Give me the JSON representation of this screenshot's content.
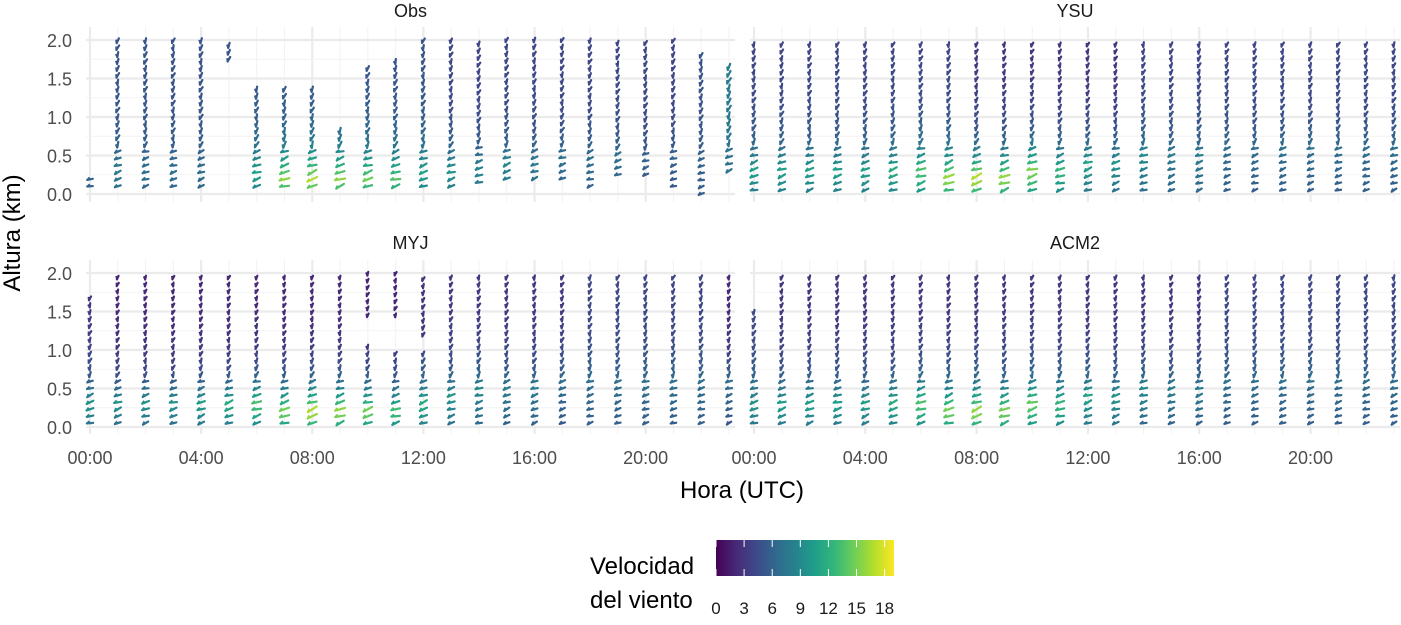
{
  "chart_data": {
    "type": "vector field (wind barbs) facet grid",
    "x_axis": {
      "label": "Hora (UTC)",
      "tick_labels": [
        "00:00",
        "04:00",
        "08:00",
        "12:00",
        "16:00",
        "20:00"
      ],
      "tick_hours": [
        0,
        4,
        8,
        12,
        16,
        20
      ],
      "range_hours": [
        0,
        23
      ]
    },
    "y_axis": {
      "label": "Altura (km)",
      "tick_labels": [
        "0.0",
        "0.5",
        "1.0",
        "1.5",
        "2.0"
      ],
      "ticks": [
        0,
        0.5,
        1.0,
        1.5,
        2.0
      ],
      "range_km": [
        0,
        2
      ]
    },
    "grid": true,
    "legend": {
      "title_line1": "Velocidad",
      "title_line2": "del viento",
      "placement": "bottom",
      "tick_values": [
        0,
        3,
        6,
        9,
        12,
        15,
        18
      ],
      "tick_labels": [
        "0",
        "3",
        "6",
        "9",
        "12",
        "15",
        "18"
      ],
      "range": [
        0,
        19
      ],
      "palette": [
        "#440154",
        "#482878",
        "#3e4989",
        "#31688e",
        "#26828e",
        "#1f9e89",
        "#35b779",
        "#6ece58",
        "#b5de2b",
        "#fde725"
      ]
    },
    "panels": [
      {
        "name": "Obs",
        "hours": [
          0,
          1,
          2,
          3,
          4,
          5,
          6,
          7,
          8,
          9,
          10,
          11,
          12,
          13,
          14,
          15,
          16,
          17,
          18,
          19,
          20,
          21,
          22,
          23
        ],
        "top_km": [
          0.2,
          2.05,
          2.05,
          2.05,
          2.05,
          1.95,
          1.4,
          1.4,
          1.4,
          0.9,
          1.7,
          1.8,
          2.0,
          2.0,
          2.0,
          2.0,
          2.0,
          2.0,
          2.0,
          2.0,
          2.0,
          2.0,
          1.8,
          1.65
        ],
        "bottom_km": [
          0.1,
          0.1,
          0.1,
          0.1,
          0.1,
          1.75,
          0.1,
          0.1,
          0.1,
          0.1,
          0.1,
          0.1,
          0.1,
          0.1,
          0.15,
          0.2,
          0.2,
          0.2,
          0.1,
          0.25,
          0.25,
          0.1,
          0.0,
          0.3
        ],
        "peak_speed": [
          6,
          8,
          7,
          7,
          7,
          7,
          11,
          16,
          17,
          16,
          15,
          14,
          11,
          10,
          9,
          9,
          8,
          7,
          7,
          7,
          6,
          6,
          6,
          7
        ],
        "peak_height_km": [
          0.2,
          0.3,
          0.3,
          0.3,
          0.3,
          0.3,
          0.3,
          0.2,
          0.2,
          0.2,
          0.2,
          0.2,
          0.3,
          0.3,
          0.3,
          0.4,
          0.4,
          0.5,
          0.5,
          0.5,
          0.5,
          0.5,
          0.5,
          0.5
        ],
        "upper_speed": [
          5,
          5,
          5,
          5,
          5,
          5,
          5,
          5,
          5,
          5,
          5,
          5,
          5,
          4,
          4,
          4,
          4,
          4,
          4,
          4,
          4,
          4,
          5,
          8
        ]
      },
      {
        "name": "YSU",
        "hours": [
          0,
          1,
          2,
          3,
          4,
          5,
          6,
          7,
          8,
          9,
          10,
          11,
          12,
          13,
          14,
          15,
          16,
          17,
          18,
          19,
          20,
          21,
          22,
          23
        ],
        "top_km": [
          2.0,
          2.0,
          2.0,
          2.0,
          2.0,
          2.0,
          2.0,
          2.0,
          2.0,
          2.0,
          2.0,
          2.0,
          2.0,
          2.0,
          2.0,
          2.0,
          2.0,
          2.0,
          2.0,
          2.0,
          2.0,
          2.0,
          2.0,
          2.0
        ],
        "bottom_km": [
          0.05,
          0.05,
          0.05,
          0.05,
          0.05,
          0.05,
          0.05,
          0.05,
          0.05,
          0.05,
          0.05,
          0.05,
          0.05,
          0.05,
          0.05,
          0.05,
          0.05,
          0.05,
          0.05,
          0.05,
          0.05,
          0.05,
          0.05,
          0.05
        ],
        "peak_speed": [
          11,
          11,
          11,
          11,
          11,
          12,
          14,
          17,
          18,
          17,
          16,
          13,
          11,
          10,
          9,
          8,
          8,
          7,
          7,
          7,
          7,
          7,
          7,
          7
        ],
        "peak_height_km": [
          0.3,
          0.3,
          0.3,
          0.3,
          0.3,
          0.3,
          0.3,
          0.2,
          0.2,
          0.2,
          0.3,
          0.3,
          0.4,
          0.4,
          0.5,
          0.5,
          0.5,
          0.6,
          0.6,
          0.6,
          0.6,
          0.6,
          0.6,
          0.6
        ],
        "upper_speed": [
          4,
          4,
          4,
          4,
          4,
          4,
          4,
          4,
          3,
          3,
          3,
          3,
          3,
          3,
          4,
          4,
          4,
          4,
          4,
          4,
          4,
          4,
          4,
          4
        ]
      },
      {
        "name": "MYJ",
        "hours": [
          0,
          1,
          2,
          3,
          4,
          5,
          6,
          7,
          8,
          9,
          10,
          11,
          12,
          13,
          14,
          15,
          16,
          17,
          18,
          19,
          20,
          21,
          22,
          23
        ],
        "top_km": [
          1.7,
          2.0,
          2.0,
          2.0,
          2.0,
          2.0,
          2.0,
          2.0,
          2.0,
          2.0,
          1.1,
          0.95,
          1.0,
          2.0,
          2.0,
          2.0,
          2.0,
          2.0,
          2.0,
          2.0,
          2.0,
          2.0,
          2.0,
          2.0
        ],
        "bottom_km": [
          0.05,
          0.05,
          0.05,
          0.05,
          0.05,
          0.05,
          0.05,
          0.05,
          0.05,
          0.05,
          0.05,
          0.05,
          0.05,
          0.05,
          0.05,
          0.05,
          0.05,
          0.05,
          0.05,
          0.05,
          0.05,
          0.05,
          0.05,
          0.05
        ],
        "peak_speed": [
          10,
          10,
          10,
          10,
          11,
          12,
          14,
          16,
          18,
          17,
          16,
          14,
          12,
          10,
          9,
          8,
          8,
          7,
          7,
          7,
          7,
          7,
          7,
          7
        ],
        "peak_height_km": [
          0.3,
          0.3,
          0.3,
          0.3,
          0.3,
          0.3,
          0.3,
          0.2,
          0.2,
          0.2,
          0.2,
          0.2,
          0.3,
          0.4,
          0.5,
          0.5,
          0.5,
          0.6,
          0.6,
          0.6,
          0.6,
          0.6,
          0.6,
          0.6
        ],
        "upper_speed": [
          3,
          2,
          2,
          2,
          2,
          2,
          2,
          2,
          2,
          2,
          2,
          2,
          3,
          3,
          3,
          3,
          3,
          3,
          4,
          4,
          4,
          4,
          4,
          2
        ],
        "extra_upper_hours": [
          10,
          11,
          12
        ],
        "extra_upper_km": [
          [
            1.45,
            2.0
          ],
          [
            1.45,
            2.0
          ],
          [
            1.2,
            2.0
          ]
        ]
      },
      {
        "name": "ACM2",
        "hours": [
          0,
          1,
          2,
          3,
          4,
          5,
          6,
          7,
          8,
          9,
          10,
          11,
          12,
          13,
          14,
          15,
          16,
          17,
          18,
          19,
          20,
          21,
          22,
          23
        ],
        "top_km": [
          1.5,
          2.0,
          2.0,
          2.0,
          2.0,
          2.0,
          2.0,
          2.0,
          2.0,
          2.0,
          2.0,
          2.0,
          2.0,
          2.0,
          2.0,
          2.0,
          2.0,
          2.0,
          2.0,
          2.0,
          2.0,
          2.0,
          2.0,
          2.0
        ],
        "bottom_km": [
          0.05,
          0.05,
          0.05,
          0.05,
          0.05,
          0.05,
          0.05,
          0.05,
          0.05,
          0.05,
          0.05,
          0.05,
          0.05,
          0.05,
          0.05,
          0.05,
          0.05,
          0.05,
          0.05,
          0.05,
          0.05,
          0.05,
          0.05,
          0.05
        ],
        "peak_speed": [
          10,
          11,
          11,
          11,
          11,
          12,
          14,
          16,
          17,
          16,
          15,
          13,
          11,
          10,
          9,
          8,
          8,
          7,
          7,
          7,
          7,
          7,
          7,
          7
        ],
        "peak_height_km": [
          0.3,
          0.3,
          0.3,
          0.3,
          0.3,
          0.3,
          0.3,
          0.2,
          0.2,
          0.2,
          0.3,
          0.3,
          0.4,
          0.4,
          0.5,
          0.5,
          0.5,
          0.6,
          0.6,
          0.6,
          0.6,
          0.6,
          0.6,
          0.6
        ],
        "upper_speed": [
          4,
          3,
          3,
          3,
          3,
          3,
          3,
          3,
          3,
          3,
          3,
          3,
          3,
          3,
          3,
          3,
          3,
          4,
          4,
          4,
          4,
          4,
          4,
          4
        ]
      }
    ]
  }
}
